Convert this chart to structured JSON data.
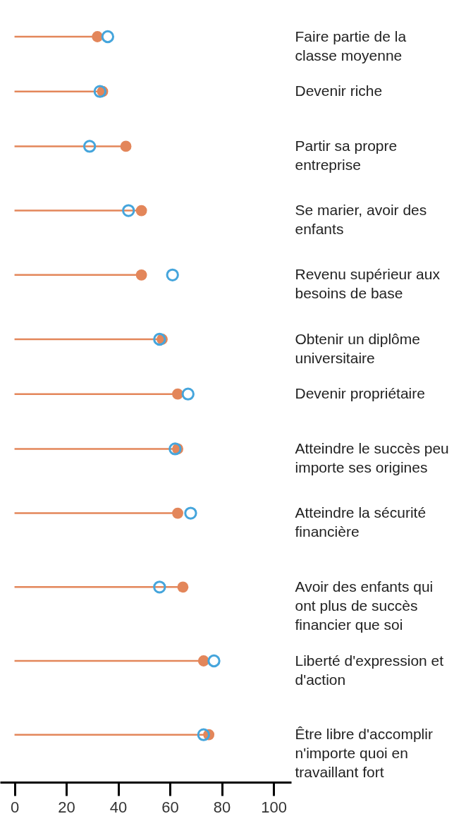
{
  "chart_data": {
    "type": "lollipop",
    "orientation": "horizontal",
    "categories": [
      "Faire partie de la classe moyenne",
      "Devenir riche",
      "Partir sa propre entreprise",
      "Se marier, avoir des enfants",
      "Revenu supérieur aux besoins de base",
      "Obtenir un diplôme universitaire",
      "Devenir propriétaire",
      "Atteindre le succès peu importe ses origines",
      "Atteindre la sécurité financière",
      "Avoir des enfants qui ont plus de succès financier que soi",
      "Liberté d'expression et d'action",
      "Être libre d'accomplir n'importe quoi en travaillant fort"
    ],
    "series": [
      {
        "color": "#e3865a",
        "values": [
          32,
          34,
          43,
          49,
          49,
          57,
          63,
          63,
          63,
          65,
          73,
          75
        ]
      },
      {
        "type": "scatter",
        "color": "#45a5dc",
        "values": [
          36,
          33,
          29,
          44,
          61,
          56,
          67,
          62,
          68,
          56,
          77,
          73
        ]
      }
    ],
    "xlim": [
      -5.6,
      106.8
    ],
    "xticks": [
      0,
      20,
      40,
      60,
      80,
      100
    ],
    "marker": "circle"
  }
}
